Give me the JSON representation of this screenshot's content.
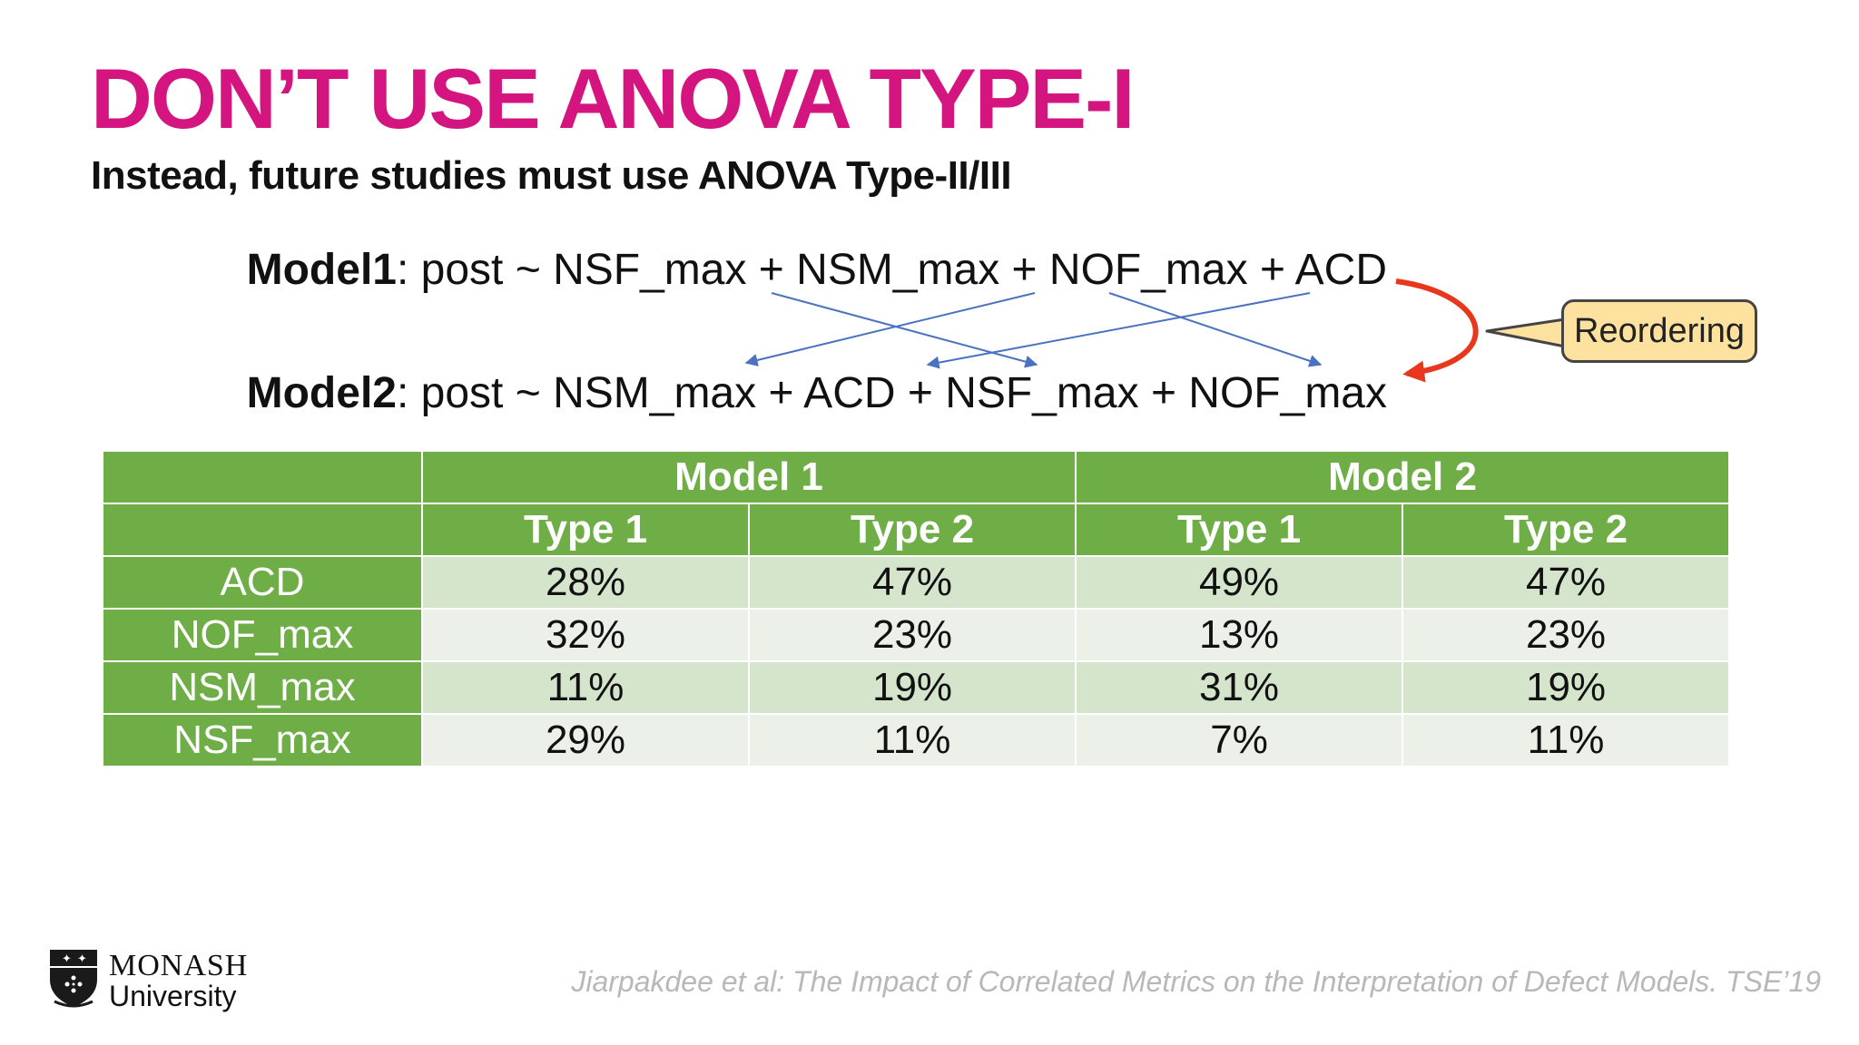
{
  "slide": {
    "title": "DON’T USE ANOVA TYPE-I",
    "subtitle": "Instead, future studies must use ANOVA Type-II/III"
  },
  "models": {
    "model1": {
      "label": "Model1",
      "formula": ": post ~ NSF_max + NSM_max + NOF_max + ACD"
    },
    "model2": {
      "label": "Model2",
      "formula": ": post ~ NSM_max + ACD + NSF_max + NOF_max"
    }
  },
  "callout": {
    "text": "Reordering"
  },
  "colors": {
    "title": "#d4157f",
    "table_header": "#6fae47",
    "table_row_dark": "#d5e5cc",
    "table_row_light": "#ebf1e8",
    "connector": "#4a72c0",
    "reorder_arrow": "#e8371d",
    "callout_fill": "#fde19e"
  },
  "table": {
    "groups": [
      "Model 1",
      "Model 2"
    ],
    "subheaders": [
      "Type 1",
      "Type 2",
      "Type 1",
      "Type 2"
    ],
    "rows": [
      {
        "metric": "ACD",
        "values": [
          "28%",
          "47%",
          "49%",
          "47%"
        ]
      },
      {
        "metric": "NOF_max",
        "values": [
          "32%",
          "23%",
          "13%",
          "23%"
        ]
      },
      {
        "metric": "NSM_max",
        "values": [
          "11%",
          "19%",
          "31%",
          "19%"
        ]
      },
      {
        "metric": "NSF_max",
        "values": [
          "29%",
          "11%",
          "7%",
          "11%"
        ]
      }
    ]
  },
  "footer": {
    "logo_line1": "MONASH",
    "logo_line2": "University",
    "citation": "Jiarpakdee et al: The Impact of Correlated Metrics on the Interpretation of Defect Models. TSE’19"
  }
}
